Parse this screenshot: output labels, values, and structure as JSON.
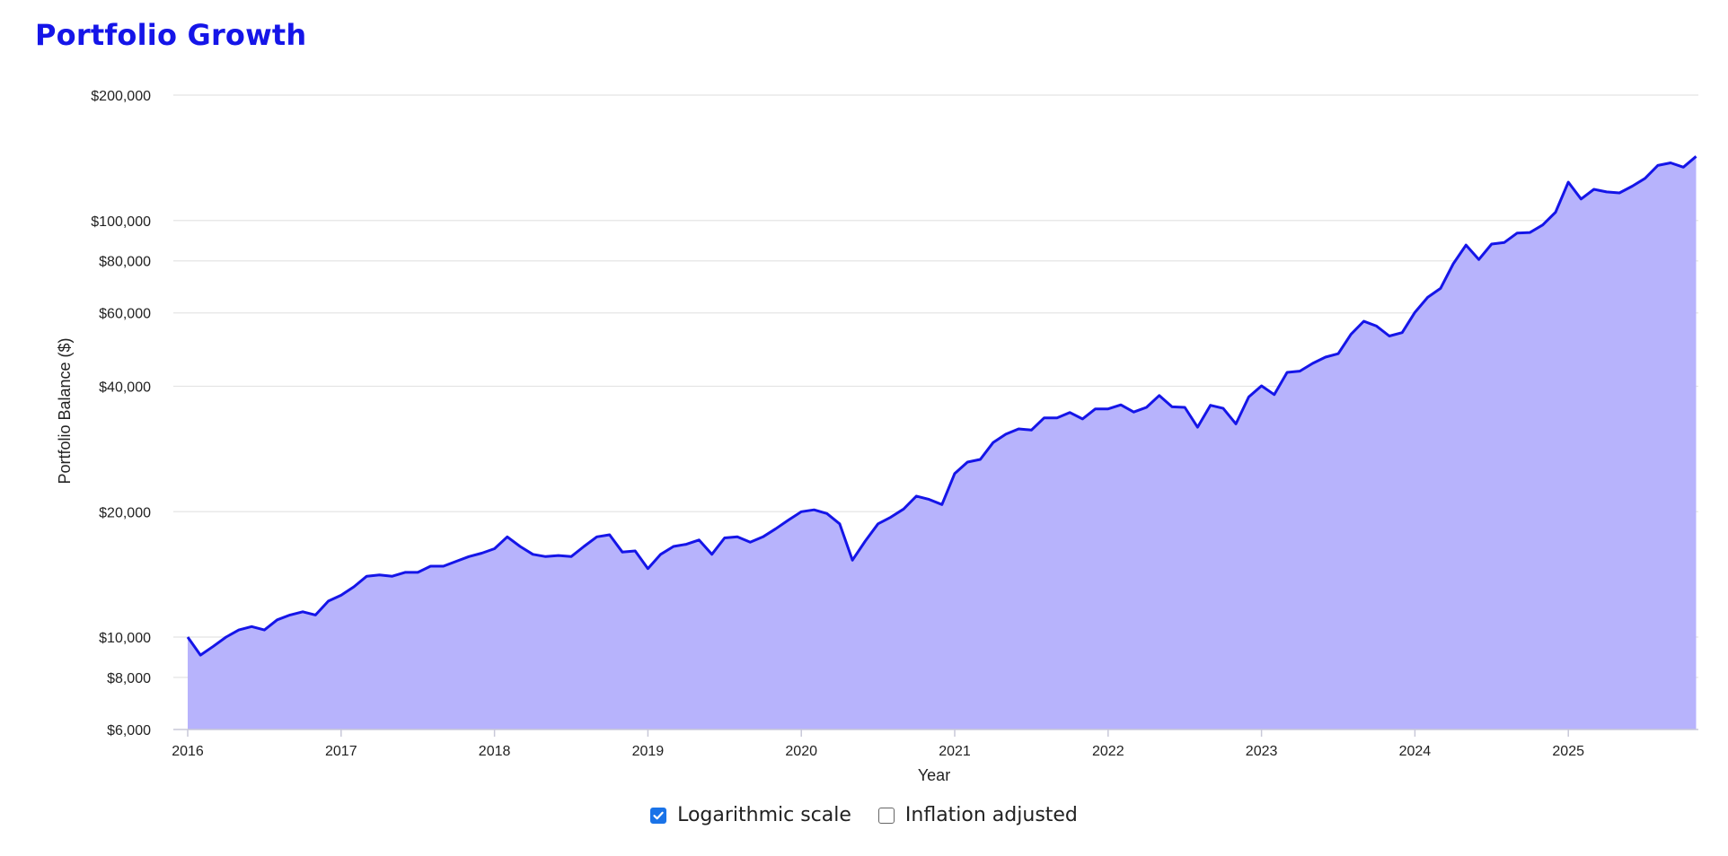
{
  "title": "Portfolio Growth",
  "controls": {
    "log_scale": {
      "label": "Logarithmic scale",
      "checked": true
    },
    "inflation": {
      "label": "Inflation adjusted",
      "checked": false
    }
  },
  "colors": {
    "title": "#1515e8",
    "line": "#1515e8",
    "area": "#b7b3fc",
    "grid": "#e4e4e4",
    "checkbox": "#1a73e8"
  },
  "chart_data": {
    "type": "area",
    "title": "Portfolio Growth",
    "xlabel": "Year",
    "ylabel": "Portfolio Balance ($)",
    "y_scale": "log",
    "grid": "horizontal",
    "xlim": [
      "2016-01",
      "2025-10"
    ],
    "ylim": [
      6000,
      200000
    ],
    "x_ticks": [
      "2016",
      "2017",
      "2018",
      "2019",
      "2020",
      "2021",
      "2022",
      "2023",
      "2024",
      "2025"
    ],
    "y_ticks": [
      {
        "value": 6000,
        "label": "$6,000"
      },
      {
        "value": 8000,
        "label": "$8,000"
      },
      {
        "value": 10000,
        "label": "$10,000"
      },
      {
        "value": 20000,
        "label": "$20,000"
      },
      {
        "value": 40000,
        "label": "$40,000"
      },
      {
        "value": 60000,
        "label": "$60,000"
      },
      {
        "value": 80000,
        "label": "$80,000"
      },
      {
        "value": 100000,
        "label": "$100,000"
      },
      {
        "value": 200000,
        "label": "$200,000"
      }
    ],
    "series": [
      {
        "start": "2016-01",
        "frequency": "monthly",
        "values": [
          10000,
          9050,
          9500,
          10000,
          10400,
          10600,
          10400,
          11000,
          11300,
          11500,
          11300,
          12200,
          12600,
          13200,
          14000,
          14100,
          14000,
          14300,
          14300,
          14800,
          14800,
          15200,
          15600,
          15900,
          16300,
          17400,
          16500,
          15800,
          15600,
          15700,
          15600,
          16500,
          17400,
          17600,
          16000,
          16100,
          14600,
          15800,
          16500,
          16700,
          17100,
          15800,
          17300,
          17400,
          16900,
          17400,
          18200,
          19100,
          20000,
          20200,
          19800,
          18700,
          15300,
          17000,
          18700,
          19400,
          20300,
          21800,
          21400,
          20800,
          24700,
          26300,
          26700,
          29300,
          30700,
          31600,
          31400,
          33600,
          33600,
          34600,
          33400,
          35300,
          35300,
          36100,
          34700,
          35600,
          38000,
          35700,
          35600,
          31900,
          36000,
          35400,
          32500,
          37700,
          40100,
          38200,
          43200,
          43500,
          45400,
          47000,
          47900,
          53300,
          57300,
          55800,
          52800,
          53800,
          60200,
          65400,
          68700,
          78700,
          87300,
          80600,
          87800,
          88600,
          93300,
          93600,
          97600,
          104700,
          123600,
          112600,
          118800,
          117100,
          116500,
          120900,
          126200,
          135600,
          137500,
          134300,
          142500
        ]
      }
    ]
  }
}
